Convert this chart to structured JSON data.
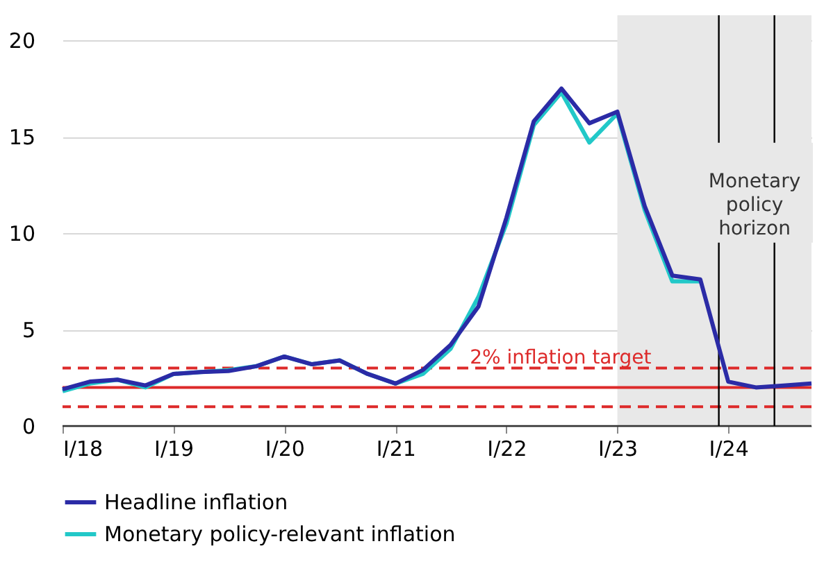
{
  "chart_data": {
    "type": "line",
    "x": [
      "2018-01",
      "2018-04",
      "2018-07",
      "2018-10",
      "2019-01",
      "2019-04",
      "2019-07",
      "2019-10",
      "2020-01",
      "2020-04",
      "2020-07",
      "2020-10",
      "2021-01",
      "2021-04",
      "2021-07",
      "2021-10",
      "2022-01",
      "2022-04",
      "2022-07",
      "2022-10",
      "2023-01",
      "2023-04",
      "2023-07",
      "2023-10",
      "2024-01",
      "2024-04",
      "2024-07",
      "2024-10"
    ],
    "series": [
      {
        "name": "Headline inflation",
        "color": "#2b2ba6",
        "values": [
          1.9,
          2.3,
          2.4,
          2.1,
          2.7,
          2.8,
          2.85,
          3.1,
          3.6,
          3.2,
          3.4,
          2.7,
          2.2,
          2.9,
          4.2,
          6.2,
          10.8,
          15.8,
          17.5,
          15.7,
          16.3,
          11.4,
          7.8,
          7.6,
          2.3,
          2.0,
          2.1,
          2.2
        ]
      },
      {
        "name": "Monetary policy-relevant inflation",
        "color": "#22c8c8",
        "values": [
          1.8,
          2.2,
          2.4,
          2.0,
          2.7,
          2.8,
          2.9,
          3.1,
          3.6,
          3.2,
          3.4,
          2.7,
          2.2,
          2.7,
          4.0,
          6.7,
          10.5,
          15.6,
          17.3,
          14.7,
          16.2,
          11.2,
          7.5,
          7.5,
          null,
          null,
          null,
          null
        ]
      }
    ],
    "xlim": [
      "2018-01",
      "2024-10"
    ],
    "xticks": [
      {
        "value": "2018-01",
        "label": "I/18"
      },
      {
        "value": "2019-01",
        "label": "I/19"
      },
      {
        "value": "2020-01",
        "label": "I/20"
      },
      {
        "value": "2021-01",
        "label": "I/21"
      },
      {
        "value": "2022-01",
        "label": "I/22"
      },
      {
        "value": "2023-01",
        "label": "I/23"
      },
      {
        "value": "2024-01",
        "label": "I/24"
      }
    ],
    "ylim": [
      0,
      21.3
    ],
    "yticks": [
      0,
      5,
      10,
      15,
      20
    ],
    "grid": "y",
    "legend": "bottom",
    "line_style": "solid",
    "marker": "none",
    "bands": [
      {
        "axis": "x",
        "from": "2023-01",
        "to": "2024-10",
        "color": "#e8e8e8"
      }
    ],
    "ref_lines": [
      {
        "axis": "y",
        "value": 2,
        "label": "2% inflation target",
        "color": "#dd2a2a",
        "line_style": "solid"
      },
      {
        "axis": "y",
        "value": 3,
        "color": "#dd2a2a",
        "line_style": "dashed"
      },
      {
        "axis": "y",
        "value": 1,
        "color": "#dd2a2a",
        "line_style": "dashed"
      },
      {
        "axis": "x",
        "value": "2023-12",
        "color": "#000000",
        "line_style": "solid"
      },
      {
        "axis": "x",
        "value": "2024-06",
        "color": "#000000",
        "line_style": "solid"
      }
    ],
    "annotations": [
      "Monetary policy horizon"
    ]
  }
}
